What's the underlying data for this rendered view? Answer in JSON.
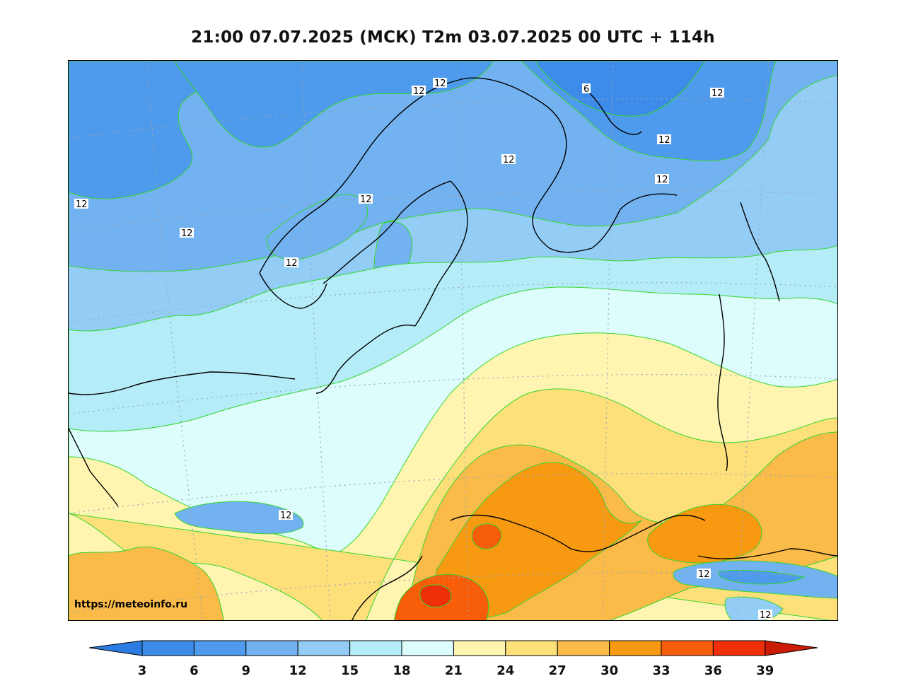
{
  "title": "21:00 07.07.2025 (МСК) T2m 03.07.2025 00 UTC + 114h",
  "watermark": "https://meteoinfo.ru",
  "contour_labels": [
    "6",
    "12",
    "12",
    "12",
    "12",
    "12",
    "12",
    "12",
    "12",
    "12",
    "12",
    "12",
    "12",
    "12"
  ],
  "colorbar": {
    "ticks": [
      "3",
      "6",
      "9",
      "12",
      "15",
      "18",
      "21",
      "24",
      "27",
      "30",
      "33",
      "36",
      "39"
    ],
    "colors": {
      "below_3": "#2b7de3",
      "3_6": "#3d8ce9",
      "6_9": "#4e9aec",
      "9_12": "#72b2f1",
      "12_15": "#93cdf6",
      "15_18": "#b4ecf7",
      "18_21": "#ddfcfc",
      "21_24": "#fff5b0",
      "24_27": "#fde07a",
      "27_30": "#fbbb48",
      "30_33": "#f79a12",
      "33_36": "#f85d0a",
      "36_39": "#ee2f09",
      "above_39": "#cc1b06"
    }
  },
  "colors": {
    "land_outline": "#000000",
    "contour_line": "#35d62f",
    "grid": "#9aa6b8"
  }
}
